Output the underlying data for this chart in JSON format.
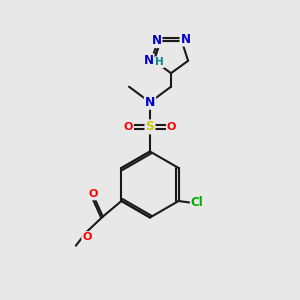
{
  "bg_color": "#e8e8e8",
  "bond_color": "#1a1a1a",
  "bond_width": 1.5,
  "atom_colors": {
    "N": "#0000cc",
    "O": "#ff0000",
    "S": "#cccc00",
    "Cl": "#00aa00",
    "H": "#008888",
    "C": "#1a1a1a"
  },
  "font_size": 8.5,
  "fig_width": 3.0,
  "fig_height": 3.0,
  "xlim": [
    0,
    10
  ],
  "ylim": [
    0,
    10
  ]
}
